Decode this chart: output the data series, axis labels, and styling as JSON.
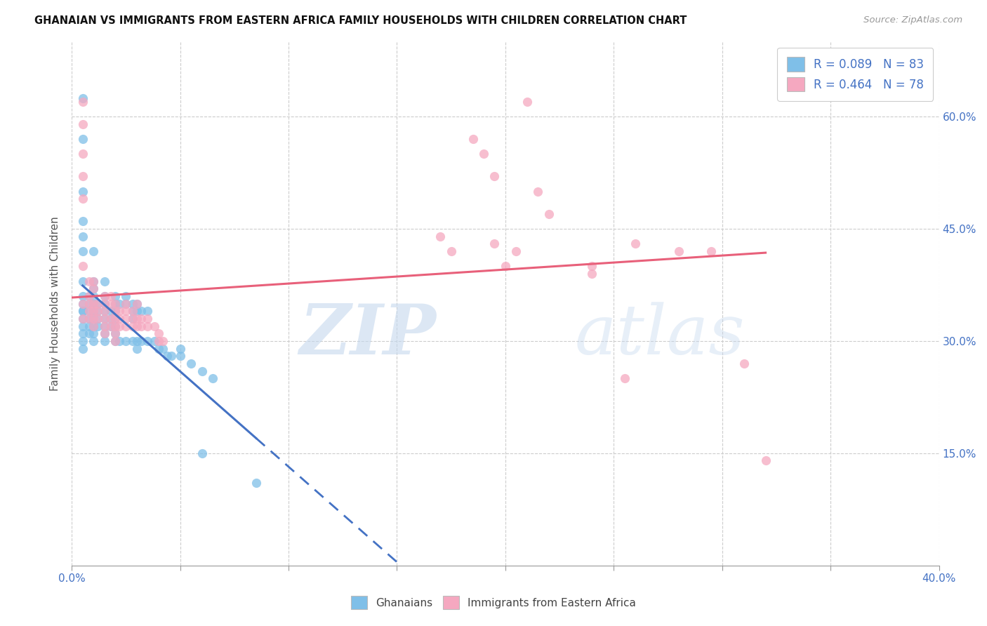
{
  "title": "GHANAIAN VS IMMIGRANTS FROM EASTERN AFRICA FAMILY HOUSEHOLDS WITH CHILDREN CORRELATION CHART",
  "source": "Source: ZipAtlas.com",
  "ylabel": "Family Households with Children",
  "xlim": [
    0.0,
    0.4
  ],
  "ylim": [
    0.0,
    0.7
  ],
  "x_ticks": [
    0.0,
    0.05,
    0.1,
    0.15,
    0.2,
    0.25,
    0.3,
    0.35,
    0.4
  ],
  "x_tick_labels_show": [
    "0.0%",
    "40.0%"
  ],
  "y_ticks_right": [
    0.15,
    0.3,
    0.45,
    0.6
  ],
  "y_tick_labels_right": [
    "15.0%",
    "30.0%",
    "45.0%",
    "60.0%"
  ],
  "color_blue": "#7fbfe8",
  "color_pink": "#f5a8c0",
  "color_blue_line": "#4472c4",
  "color_pink_line": "#e8607a",
  "color_blue_text": "#4472c4",
  "ghanaian_x": [
    0.005,
    0.005,
    0.005,
    0.005,
    0.005,
    0.005,
    0.005,
    0.005,
    0.005,
    0.005,
    0.005,
    0.005,
    0.005,
    0.005,
    0.005,
    0.005,
    0.008,
    0.008,
    0.008,
    0.008,
    0.008,
    0.008,
    0.01,
    0.01,
    0.01,
    0.01,
    0.01,
    0.01,
    0.01,
    0.01,
    0.01,
    0.01,
    0.012,
    0.012,
    0.012,
    0.012,
    0.015,
    0.015,
    0.015,
    0.015,
    0.015,
    0.015,
    0.015,
    0.015,
    0.018,
    0.018,
    0.018,
    0.02,
    0.02,
    0.02,
    0.02,
    0.02,
    0.02,
    0.02,
    0.022,
    0.022,
    0.025,
    0.025,
    0.025,
    0.028,
    0.028,
    0.028,
    0.028,
    0.03,
    0.03,
    0.03,
    0.03,
    0.032,
    0.032,
    0.035,
    0.035,
    0.038,
    0.04,
    0.042,
    0.044,
    0.046,
    0.05,
    0.05,
    0.055,
    0.06,
    0.065,
    0.06,
    0.085
  ],
  "ghanaian_y": [
    0.625,
    0.57,
    0.5,
    0.46,
    0.44,
    0.42,
    0.38,
    0.36,
    0.35,
    0.34,
    0.34,
    0.33,
    0.32,
    0.31,
    0.3,
    0.29,
    0.36,
    0.35,
    0.34,
    0.33,
    0.32,
    0.31,
    0.42,
    0.38,
    0.37,
    0.36,
    0.35,
    0.34,
    0.33,
    0.32,
    0.31,
    0.3,
    0.35,
    0.34,
    0.33,
    0.32,
    0.38,
    0.36,
    0.35,
    0.34,
    0.33,
    0.32,
    0.31,
    0.3,
    0.34,
    0.33,
    0.32,
    0.36,
    0.35,
    0.34,
    0.33,
    0.32,
    0.31,
    0.3,
    0.35,
    0.3,
    0.36,
    0.35,
    0.3,
    0.35,
    0.34,
    0.33,
    0.3,
    0.35,
    0.34,
    0.3,
    0.29,
    0.34,
    0.3,
    0.34,
    0.3,
    0.3,
    0.29,
    0.29,
    0.28,
    0.28,
    0.29,
    0.28,
    0.27,
    0.26,
    0.25,
    0.15,
    0.11
  ],
  "eastern_africa_x": [
    0.005,
    0.005,
    0.005,
    0.005,
    0.005,
    0.005,
    0.005,
    0.005,
    0.008,
    0.008,
    0.008,
    0.008,
    0.008,
    0.01,
    0.01,
    0.01,
    0.01,
    0.01,
    0.01,
    0.012,
    0.012,
    0.012,
    0.015,
    0.015,
    0.015,
    0.015,
    0.015,
    0.015,
    0.018,
    0.018,
    0.018,
    0.018,
    0.02,
    0.02,
    0.02,
    0.02,
    0.02,
    0.02,
    0.022,
    0.022,
    0.022,
    0.025,
    0.025,
    0.025,
    0.025,
    0.028,
    0.028,
    0.028,
    0.03,
    0.03,
    0.03,
    0.032,
    0.032,
    0.035,
    0.035,
    0.038,
    0.04,
    0.04,
    0.042,
    0.17,
    0.185,
    0.195,
    0.205,
    0.215,
    0.22,
    0.24,
    0.26,
    0.28,
    0.295,
    0.31,
    0.2,
    0.195,
    0.19,
    0.21,
    0.175,
    0.24,
    0.255,
    0.32
  ],
  "eastern_africa_y": [
    0.62,
    0.59,
    0.55,
    0.52,
    0.49,
    0.4,
    0.35,
    0.33,
    0.38,
    0.36,
    0.35,
    0.34,
    0.33,
    0.38,
    0.37,
    0.35,
    0.34,
    0.33,
    0.32,
    0.35,
    0.34,
    0.33,
    0.36,
    0.35,
    0.34,
    0.33,
    0.32,
    0.31,
    0.36,
    0.35,
    0.33,
    0.32,
    0.35,
    0.34,
    0.33,
    0.32,
    0.31,
    0.3,
    0.34,
    0.33,
    0.32,
    0.35,
    0.34,
    0.33,
    0.32,
    0.34,
    0.33,
    0.32,
    0.35,
    0.33,
    0.32,
    0.33,
    0.32,
    0.33,
    0.32,
    0.32,
    0.31,
    0.3,
    0.3,
    0.44,
    0.57,
    0.52,
    0.42,
    0.5,
    0.47,
    0.4,
    0.43,
    0.42,
    0.42,
    0.27,
    0.4,
    0.43,
    0.55,
    0.62,
    0.42,
    0.39,
    0.25,
    0.14
  ]
}
